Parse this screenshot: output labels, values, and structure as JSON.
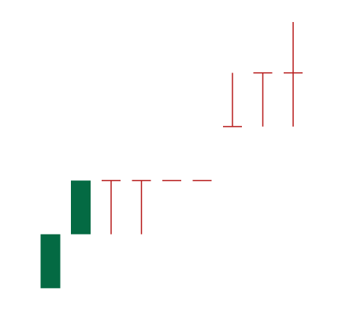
{
  "chart_data": {
    "type": "candlestick",
    "title": "",
    "xlabel": "",
    "ylabel": "",
    "ylim": [
      0,
      10
    ],
    "colors": {
      "up": "#046a43",
      "down": "#b71c1c",
      "background": "#ffffff"
    },
    "candles": [
      {
        "open": 0.78,
        "high": 2.65,
        "low": 0.78,
        "close": 2.65
      },
      {
        "open": 2.65,
        "high": 4.51,
        "low": 2.65,
        "close": 4.51
      },
      {
        "open": 4.51,
        "high": 4.51,
        "low": 2.65,
        "close": 4.51
      },
      {
        "open": 4.51,
        "high": 4.51,
        "low": 2.65,
        "close": 4.51
      },
      {
        "open": 4.51,
        "high": 4.51,
        "low": 4.51,
        "close": 4.51
      },
      {
        "open": 4.51,
        "high": 4.51,
        "low": 4.51,
        "close": 4.51
      },
      {
        "open": 6.38,
        "high": 8.24,
        "low": 6.38,
        "close": 6.38
      },
      {
        "open": 8.24,
        "high": 8.24,
        "low": 6.38,
        "close": 8.24
      },
      {
        "open": 8.24,
        "high": 10.0,
        "low": 6.38,
        "close": 8.24
      }
    ]
  }
}
